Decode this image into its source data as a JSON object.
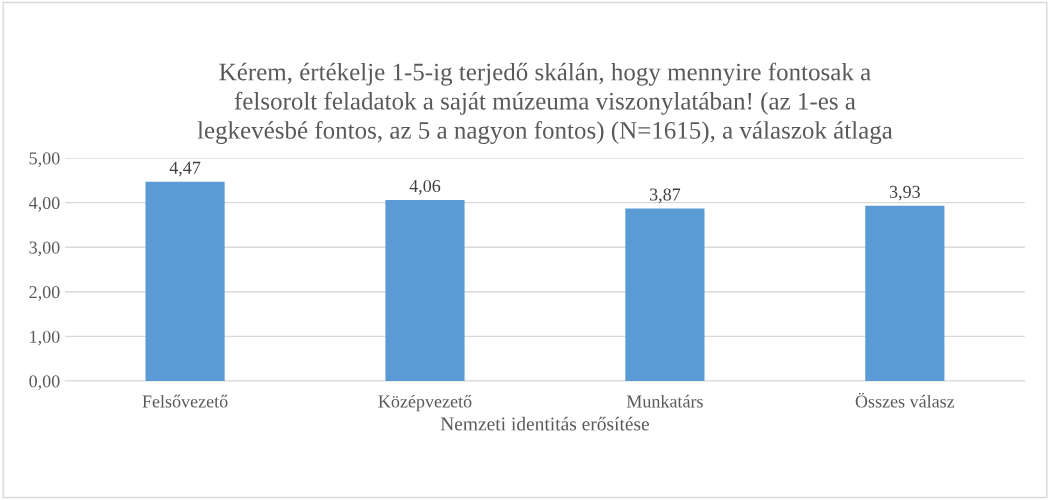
{
  "chart_data": {
    "type": "bar",
    "title": "Kérem, értékelje 1-5-ig terjedő skálán, hogy mennyire fontosak a\nfelsorolt feladatok a saját múzeuma viszonylatában! (az 1-es a\nlegkevésbé fontos, az 5 a nagyon fontos) (N=1615), a válaszok átlaga",
    "xlabel": "Nemzeti identitás erősítése",
    "categories": [
      "Felsővezető",
      "Középvezető",
      "Munkatárs",
      "Összes válasz"
    ],
    "values": [
      4.47,
      4.06,
      3.87,
      3.93
    ],
    "value_labels": [
      "4,47",
      "4,06",
      "3,87",
      "3,93"
    ],
    "color": "#5b9bd5",
    "ylim": [
      0,
      5
    ],
    "yticks": [
      {
        "value": 0,
        "label": "0,00"
      },
      {
        "value": 1,
        "label": "1,00"
      },
      {
        "value": 2,
        "label": "2,00"
      },
      {
        "value": 3,
        "label": "3,00"
      },
      {
        "value": 4,
        "label": "4,00"
      },
      {
        "value": 5,
        "label": "5,00"
      }
    ],
    "grid": "y"
  }
}
